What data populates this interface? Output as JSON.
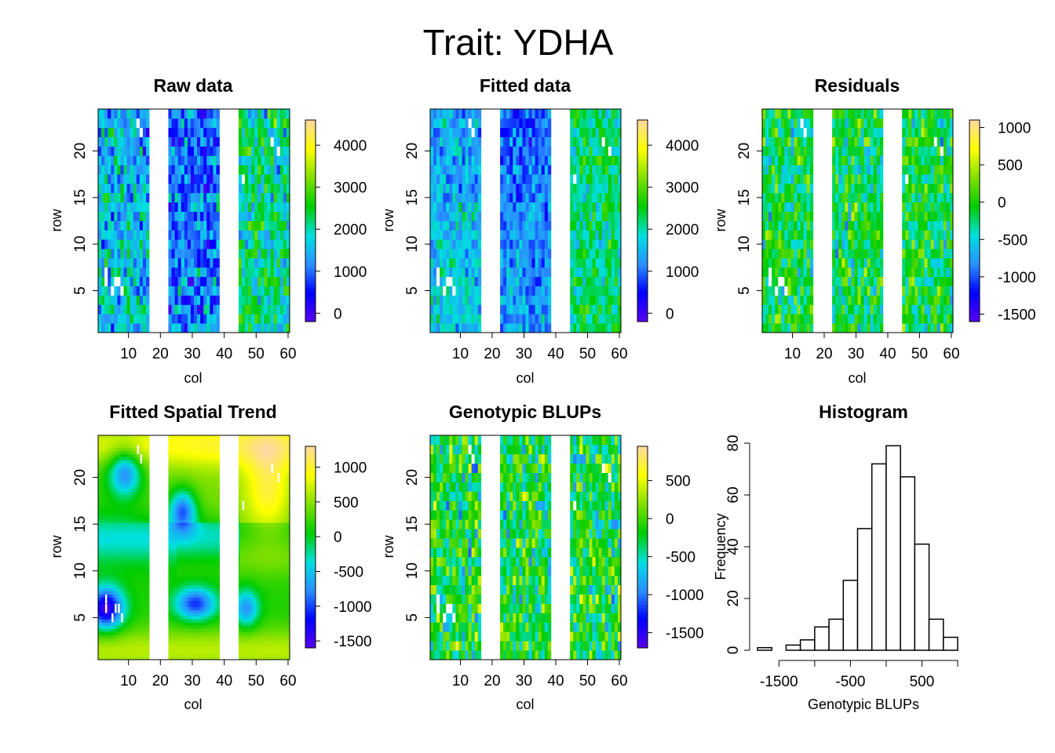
{
  "figure": {
    "title": "Trait: YDHA"
  },
  "palette": {
    "heat_stops": [
      "#5A00EE",
      "#0000FF",
      "#2A90FF",
      "#00E0E0",
      "#00CC00",
      "#80E000",
      "#FFFF00",
      "#FFD9A0"
    ],
    "histogram_fill": "#FFFFFF",
    "line": "#000000"
  },
  "chart_data": [
    {
      "id": "raw",
      "type": "heatmap",
      "title": "Raw data",
      "xlabel": "col",
      "ylabel": "row",
      "xlim": [
        1,
        60
      ],
      "ylim": [
        1,
        24
      ],
      "x_ticks": [
        10,
        20,
        30,
        40,
        50,
        60
      ],
      "y_ticks": [
        5,
        10,
        15,
        20
      ],
      "empty_col_ranges": [
        [
          17,
          22
        ],
        [
          39,
          44
        ]
      ],
      "zlim": [
        -200,
        4600
      ],
      "colorbar_ticks": [
        0,
        1000,
        2000,
        3000,
        4000
      ],
      "pattern": "raw"
    },
    {
      "id": "fitted",
      "type": "heatmap",
      "title": "Fitted data",
      "xlabel": "col",
      "ylabel": "row",
      "xlim": [
        1,
        60
      ],
      "ylim": [
        1,
        24
      ],
      "x_ticks": [
        10,
        20,
        30,
        40,
        50,
        60
      ],
      "y_ticks": [
        5,
        10,
        15,
        20
      ],
      "empty_col_ranges": [
        [
          17,
          22
        ],
        [
          39,
          44
        ]
      ],
      "zlim": [
        -200,
        4600
      ],
      "colorbar_ticks": [
        0,
        1000,
        2000,
        3000,
        4000
      ],
      "pattern": "fitted"
    },
    {
      "id": "residuals",
      "type": "heatmap",
      "title": "Residuals",
      "xlabel": "col",
      "ylabel": "row",
      "xlim": [
        1,
        60
      ],
      "ylim": [
        1,
        24
      ],
      "x_ticks": [
        10,
        20,
        30,
        40,
        50,
        60
      ],
      "y_ticks": [
        5,
        10,
        15,
        20
      ],
      "empty_col_ranges": [
        [
          17,
          22
        ],
        [
          39,
          44
        ]
      ],
      "zlim": [
        -1600,
        1100
      ],
      "colorbar_ticks": [
        -1500,
        -1000,
        -500,
        0,
        500,
        1000
      ],
      "pattern": "resid"
    },
    {
      "id": "spatial",
      "type": "heatmap",
      "title": "Fitted Spatial Trend",
      "xlabel": "col",
      "ylabel": "row",
      "xlim": [
        1,
        60
      ],
      "ylim": [
        1,
        24
      ],
      "x_ticks": [
        10,
        20,
        30,
        40,
        50,
        60
      ],
      "y_ticks": [
        5,
        10,
        15,
        20
      ],
      "empty_col_ranges": [
        [
          17,
          22
        ],
        [
          39,
          44
        ]
      ],
      "zlim": [
        -1600,
        1300
      ],
      "colorbar_ticks": [
        -1500,
        -1000,
        -500,
        0,
        500,
        1000
      ],
      "pattern": "spatial"
    },
    {
      "id": "blups",
      "type": "heatmap",
      "title": "Genotypic BLUPs",
      "xlabel": "col",
      "ylabel": "row",
      "xlim": [
        1,
        60
      ],
      "ylim": [
        1,
        24
      ],
      "x_ticks": [
        10,
        20,
        30,
        40,
        50,
        60
      ],
      "y_ticks": [
        5,
        10,
        15,
        20
      ],
      "empty_col_ranges": [
        [
          17,
          22
        ],
        [
          39,
          44
        ]
      ],
      "zlim": [
        -1700,
        950
      ],
      "colorbar_ticks": [
        -1500,
        -1000,
        -500,
        0,
        500
      ],
      "pattern": "blups"
    },
    {
      "id": "hist",
      "type": "bar",
      "title": "Histogram",
      "xlabel": "Genotypic BLUPs",
      "ylabel": "Frequency",
      "bin_edges": [
        -1800,
        -1600,
        -1400,
        -1200,
        -1000,
        -800,
        -600,
        -400,
        -200,
        0,
        200,
        400,
        600,
        800,
        1000
      ],
      "counts": [
        1,
        0,
        2,
        4,
        9,
        12,
        27,
        47,
        72,
        79,
        67,
        41,
        12,
        5
      ],
      "xlim": [
        -1800,
        1000
      ],
      "ylim": [
        0,
        80
      ],
      "x_ticks": [
        -1500,
        -1000,
        -500,
        0,
        500,
        1000
      ],
      "x_tick_labels": [
        "-1500",
        "",
        "-500",
        "",
        "500",
        ""
      ],
      "y_ticks": [
        0,
        20,
        40,
        60,
        80
      ]
    }
  ]
}
